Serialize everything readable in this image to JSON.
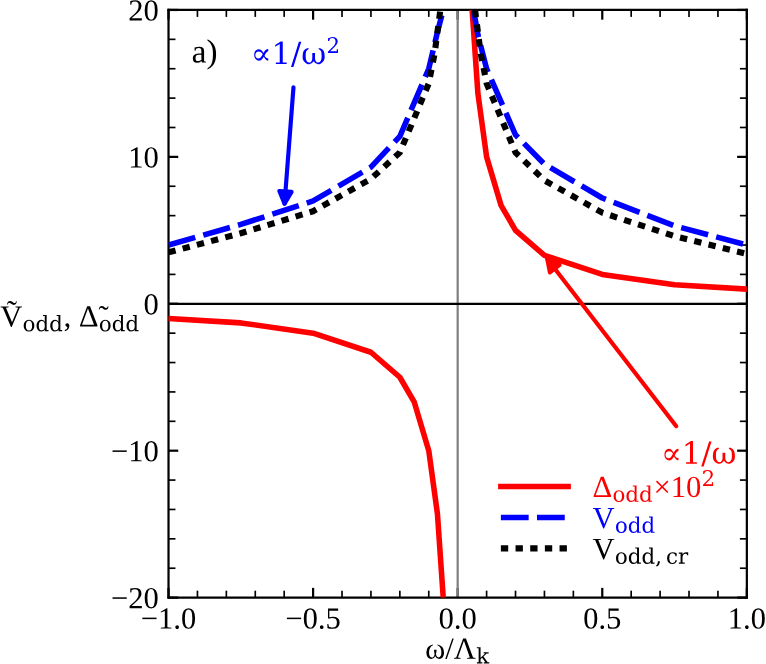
{
  "chart_data": {
    "type": "line",
    "xlabel": "ω/Λ$_{k}$",
    "ylabel": "Ṽ$_{odd}$, Δ̃$_{odd}$",
    "series": [
      {
        "name": "Δ$_{odd}$×10$^{2}$",
        "color": "#ff0000",
        "line_style": "solid",
        "x": [
          -1.0,
          -0.75,
          -0.5,
          -0.3,
          -0.2,
          -0.15,
          -0.1,
          -0.07,
          -0.05,
          null,
          0.05,
          0.07,
          0.1,
          0.15,
          0.2,
          0.3,
          0.5,
          0.75,
          1.0
        ],
        "values": [
          -1.0,
          -1.3,
          -2.0,
          -3.3,
          -5.0,
          -6.7,
          -10.0,
          -14.3,
          -20.0,
          null,
          20.0,
          14.3,
          10.0,
          6.7,
          5.0,
          3.3,
          2.0,
          1.3,
          1.0
        ]
      },
      {
        "name": "V$_{odd}$",
        "color": "#0000ff",
        "line_style": "dashed",
        "x": [
          -1.0,
          -0.75,
          -0.5,
          -0.3,
          -0.2,
          -0.1,
          -0.07,
          -0.05,
          null,
          0.055,
          0.07,
          0.1,
          0.2,
          0.3,
          0.5,
          0.75,
          1.0
        ],
        "values": [
          4.0,
          5.4,
          7.0,
          9.3,
          11.4,
          16.0,
          18.5,
          20.0,
          null,
          20.0,
          18.3,
          16.0,
          11.5,
          9.5,
          7.2,
          5.3,
          4.0
        ]
      },
      {
        "name": "V$_{odd,cr}$",
        "color": "#000000",
        "line_style": "dotted",
        "x": [
          -1.0,
          -0.75,
          -0.5,
          -0.3,
          -0.2,
          -0.1,
          -0.08,
          -0.06,
          null,
          0.06,
          0.08,
          0.1,
          0.2,
          0.3,
          0.5,
          0.75,
          1.0
        ],
        "values": [
          3.5,
          4.8,
          6.3,
          8.5,
          10.3,
          15.0,
          17.0,
          20.0,
          null,
          20.0,
          17.0,
          15.0,
          10.3,
          8.4,
          6.2,
          4.6,
          3.4
        ]
      }
    ],
    "annotations": [
      "a)",
      {
        "text": "∝1/ω$^{2}$",
        "x": -0.6,
        "y": 6.5
      },
      {
        "text": "∝1/ω",
        "x": 0.3,
        "y": 3.3
      }
    ],
    "ref_lines": [
      {
        "axis": "x",
        "value": 0,
        "color": "#808080"
      },
      {
        "axis": "y",
        "value": 0,
        "color": "#000000"
      }
    ],
    "xlim": [
      -1.0,
      1.0
    ],
    "ylim": [
      -20,
      20
    ],
    "xticks": [
      {
        "value": -1.0,
        "label": "−1.0"
      },
      {
        "value": -0.5,
        "label": "−0.5"
      },
      {
        "value": 0.0,
        "label": "0.0"
      },
      {
        "value": 0.5,
        "label": "0.5"
      },
      {
        "value": 1.0,
        "label": "1.0"
      }
    ],
    "yticks": [
      {
        "value": -20,
        "label": "−20"
      },
      {
        "value": -10,
        "label": "−10"
      },
      0,
      10,
      20
    ],
    "legend": "bottom right",
    "grid": false
  }
}
